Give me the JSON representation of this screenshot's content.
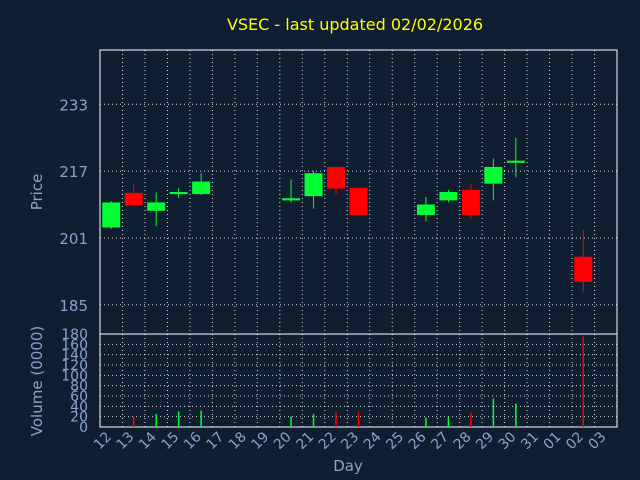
{
  "chart_data": [
    {
      "type": "candlestick",
      "title": "VSEC - last updated 02/02/2026",
      "ylabel": "Price",
      "y_ticks": [
        185,
        201,
        217,
        233
      ],
      "ylim": [
        178,
        246
      ],
      "grid": true,
      "categories": [
        "12",
        "13",
        "14",
        "15",
        "16",
        "17",
        "18",
        "19",
        "20",
        "21",
        "22",
        "23",
        "24",
        "25",
        "26",
        "27",
        "28",
        "29",
        "30",
        "31",
        "01",
        "02",
        "03"
      ],
      "candles": [
        {
          "x": "12",
          "open": 203.5,
          "close": 209.5,
          "high": 209.8,
          "low": 203.2
        },
        {
          "x": "13",
          "open": 211.8,
          "close": 208.8,
          "high": 213.8,
          "low": 208.5
        },
        {
          "x": "14",
          "open": 207.5,
          "close": 209.5,
          "high": 211.9,
          "low": 203.8
        },
        {
          "x": "15",
          "open": 211.5,
          "close": 212.0,
          "high": 213.0,
          "low": 210.5
        },
        {
          "x": "16",
          "open": 211.5,
          "close": 214.5,
          "high": 216.5,
          "low": 211.3
        },
        {
          "x": "20",
          "open": 210.0,
          "close": 210.5,
          "high": 215.0,
          "low": 209.5
        },
        {
          "x": "21",
          "open": 211.0,
          "close": 216.5,
          "high": 217.0,
          "low": 208.0
        },
        {
          "x": "22",
          "open": 218.0,
          "close": 212.8,
          "high": 218.0,
          "low": 211.5
        },
        {
          "x": "23",
          "open": 213.0,
          "close": 206.5,
          "high": 213.0,
          "low": 206.5
        },
        {
          "x": "26",
          "open": 206.5,
          "close": 209.0,
          "high": 210.8,
          "low": 205.0
        },
        {
          "x": "27",
          "open": 210.0,
          "close": 212.0,
          "high": 212.5,
          "low": 209.5
        },
        {
          "x": "28",
          "open": 212.5,
          "close": 206.5,
          "high": 214.0,
          "low": 205.5
        },
        {
          "x": "29",
          "open": 214.0,
          "close": 218.0,
          "high": 220.0,
          "low": 210.0
        },
        {
          "x": "30",
          "open": 219.0,
          "close": 219.5,
          "high": 225.0,
          "low": 215.5
        },
        {
          "x": "02",
          "open": 196.5,
          "close": 190.5,
          "high": 203.0,
          "low": 188.0
        }
      ],
      "colors": {
        "up": "#00ff33",
        "down": "#ff0000",
        "background": "#0f1e30",
        "frame": "#ffffff",
        "title": "#ffff00",
        "axis_text": "#8aa4c8"
      }
    },
    {
      "type": "bar",
      "ylabel": "Volume (0000)",
      "xlabel": "Day",
      "y_ticks": [
        0,
        20,
        40,
        60,
        80,
        100,
        120,
        140,
        160,
        180
      ],
      "ylim": [
        0,
        180
      ],
      "grid": true,
      "categories": [
        "12",
        "13",
        "14",
        "15",
        "16",
        "17",
        "18",
        "19",
        "20",
        "21",
        "22",
        "23",
        "24",
        "25",
        "26",
        "27",
        "28",
        "29",
        "30",
        "31",
        "01",
        "02",
        "03"
      ],
      "volumes": [
        {
          "x": "13",
          "value": 20,
          "direction": "down"
        },
        {
          "x": "14",
          "value": 25,
          "direction": "up"
        },
        {
          "x": "15",
          "value": 30,
          "direction": "up"
        },
        {
          "x": "16",
          "value": 32,
          "direction": "up"
        },
        {
          "x": "20",
          "value": 20,
          "direction": "up"
        },
        {
          "x": "21",
          "value": 25,
          "direction": "up"
        },
        {
          "x": "22",
          "value": 28,
          "direction": "down"
        },
        {
          "x": "23",
          "value": 30,
          "direction": "down"
        },
        {
          "x": "26",
          "value": 18,
          "direction": "up"
        },
        {
          "x": "27",
          "value": 20,
          "direction": "up"
        },
        {
          "x": "28",
          "value": 28,
          "direction": "down"
        },
        {
          "x": "29",
          "value": 55,
          "direction": "up"
        },
        {
          "x": "30",
          "value": 45,
          "direction": "up"
        },
        {
          "x": "02",
          "value": 175,
          "direction": "down"
        }
      ]
    }
  ]
}
